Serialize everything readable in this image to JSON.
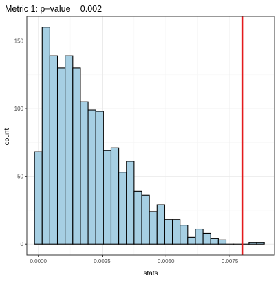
{
  "chart_data": {
    "type": "bar",
    "title": "Metric 1: p−value = 0.002",
    "xlabel": "stats",
    "ylabel": "count",
    "xlim": [
      -0.00045,
      0.00925
    ],
    "ylim": [
      -8,
      168
    ],
    "xticks": [
      0.0,
      0.0025,
      0.005,
      0.0075
    ],
    "xtick_labels": [
      "0.0000",
      "0.0025",
      "0.0050",
      "0.0075"
    ],
    "yticks": [
      0,
      50,
      100,
      150
    ],
    "ytick_labels": [
      "0",
      "50",
      "100",
      "150"
    ],
    "bin_width": 0.0003,
    "bin_starts": [
      -0.00015,
      0.00015,
      0.00045,
      0.00075,
      0.00105,
      0.00135,
      0.00165,
      0.00195,
      0.00225,
      0.00255,
      0.00285,
      0.00315,
      0.00345,
      0.00375,
      0.00405,
      0.00435,
      0.00465,
      0.00495,
      0.00525,
      0.00555,
      0.00585,
      0.00615,
      0.00645,
      0.00675,
      0.00705,
      0.00735,
      0.00765,
      0.00795,
      0.00825,
      0.00855
    ],
    "counts": [
      68,
      160,
      139,
      130,
      139,
      130,
      105,
      99,
      98,
      69,
      71,
      53,
      61,
      39,
      36,
      24,
      29,
      18,
      18,
      14,
      5,
      11,
      8,
      4,
      3,
      0,
      0,
      0,
      1,
      1
    ],
    "bar_fill": "#a6cfe3",
    "bar_stroke": "#000000",
    "reference_line": {
      "x": 0.008,
      "color": "#e41a1c"
    },
    "grid": true,
    "panel_border": "#333333",
    "grid_major": "#ebebeb",
    "grid_minor": "#f5f5f5"
  }
}
